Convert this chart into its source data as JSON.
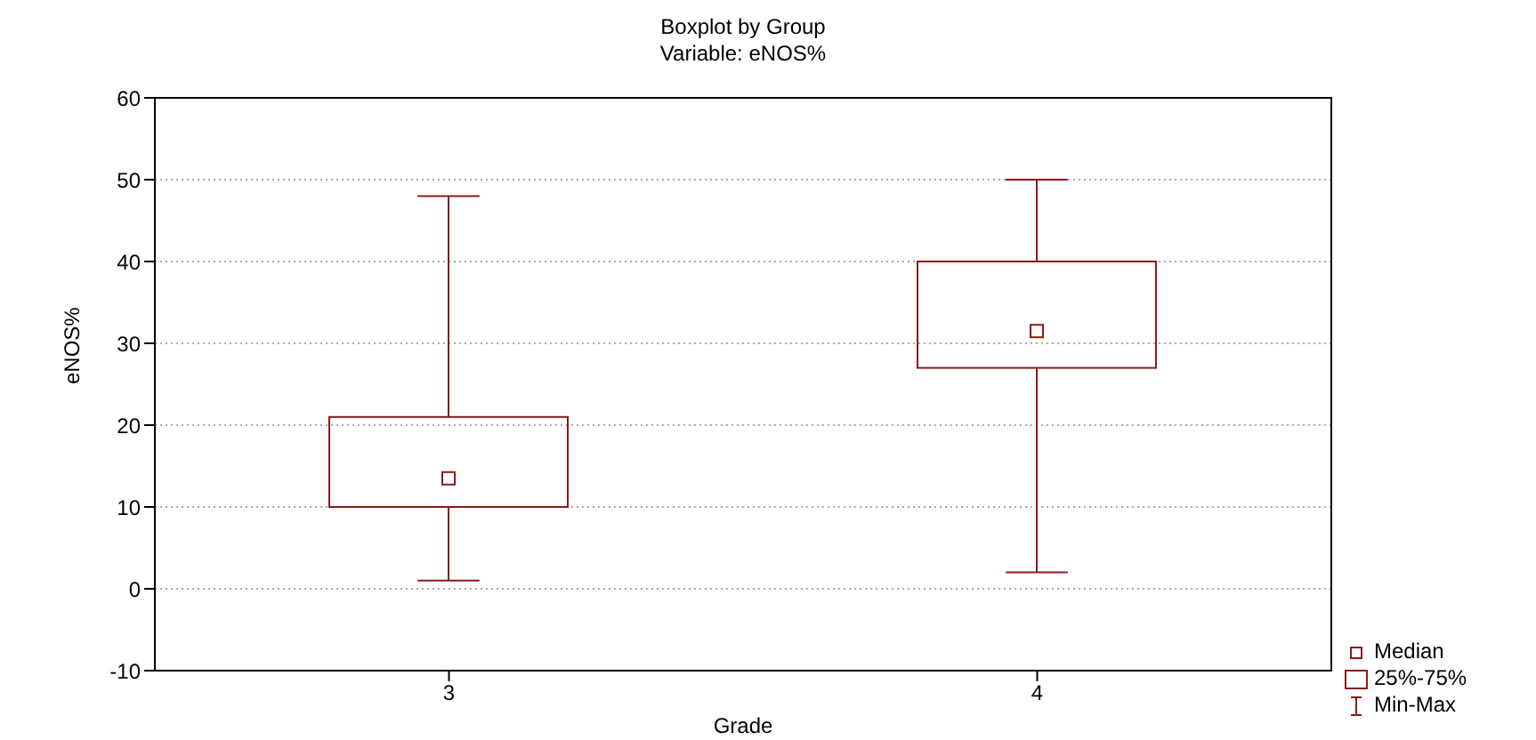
{
  "chart_data": {
    "type": "box",
    "title": "Boxplot by Group",
    "subtitle": "Variable: eNOS%",
    "xlabel": "Grade",
    "ylabel": "eNOS%",
    "categories": [
      "3",
      "4"
    ],
    "series": [
      {
        "color": "#8b1a1a",
        "boxes": [
          {
            "low": 1,
            "q1": 10,
            "median": 13.5,
            "q3": 21,
            "high": 48
          },
          {
            "low": 2,
            "q1": 27,
            "median": 31.5,
            "q3": 40,
            "high": 50
          }
        ]
      }
    ],
    "ylim": [
      -10,
      60
    ],
    "yticks": [
      -10,
      0,
      10,
      20,
      30,
      40,
      50,
      60
    ],
    "grid": "y",
    "annotations": [
      "Median",
      "25%-75%",
      "Min-Max"
    ]
  }
}
